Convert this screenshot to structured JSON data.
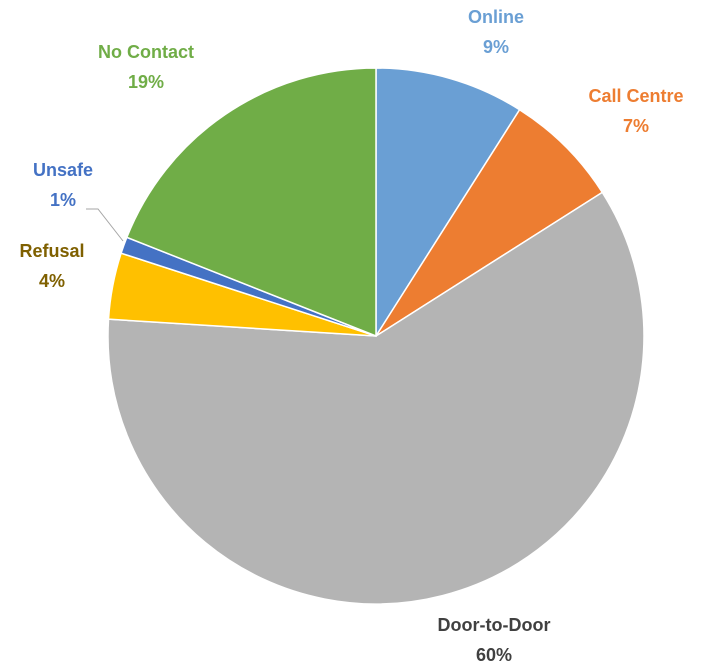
{
  "chart_data": {
    "type": "pie",
    "categories": [
      "Online",
      "Call Centre",
      "Door-to-Door",
      "Refusal",
      "Unsafe",
      "No Contact"
    ],
    "values": [
      9,
      7,
      60,
      4,
      1,
      19
    ],
    "value_labels": [
      "9%",
      "7%",
      "60%",
      "4%",
      "1%",
      "19%"
    ],
    "colors": [
      "#6a9fd4",
      "#ed7d31",
      "#b4b4b4",
      "#ffc000",
      "#4472c4",
      "#70ad47"
    ],
    "label_colors": [
      "#6a9fd4",
      "#ed7d31",
      "#404040",
      "#7f6000",
      "#4472c4",
      "#70ad47"
    ]
  }
}
